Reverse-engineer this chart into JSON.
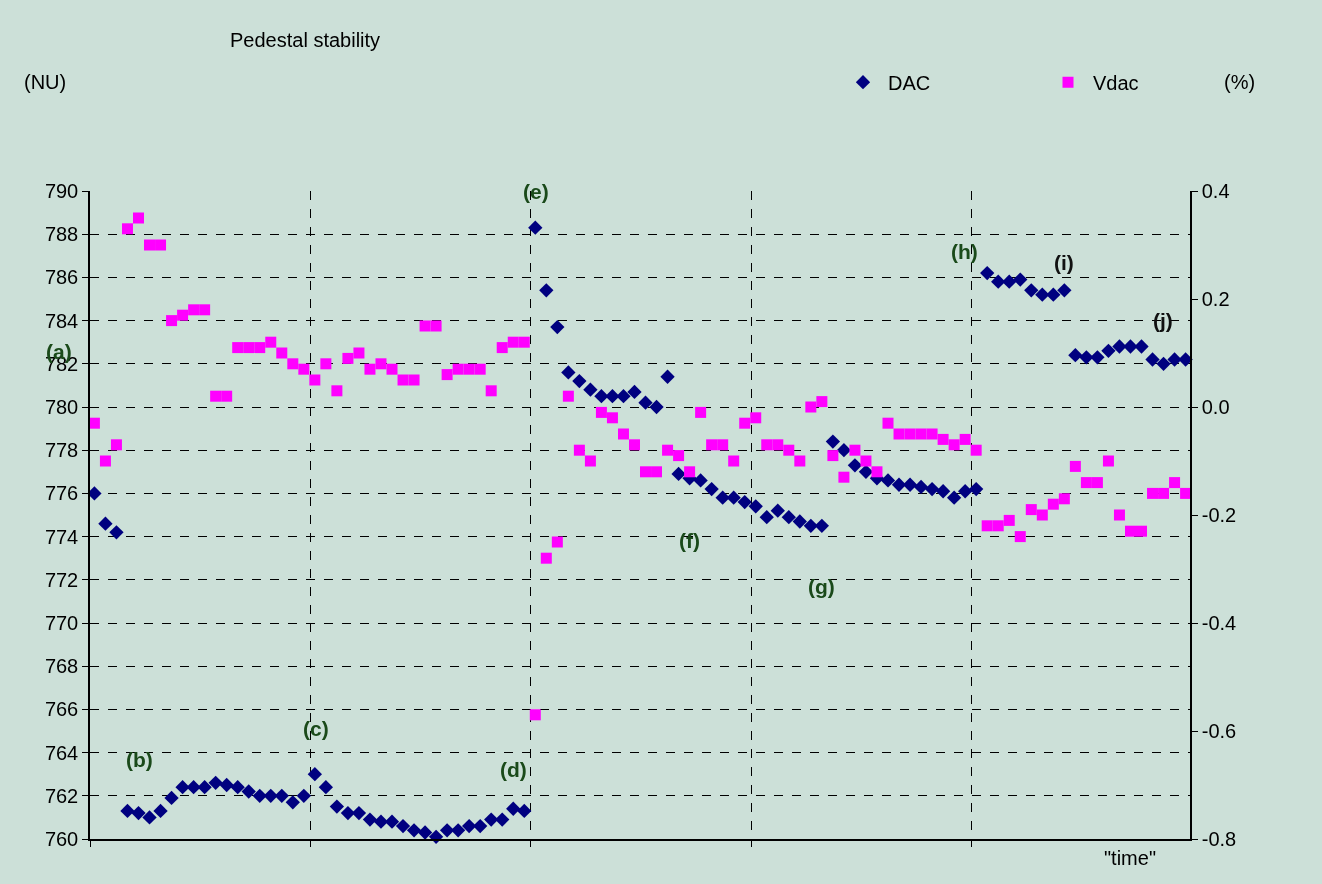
{
  "chart_data": {
    "type": "scatter",
    "title": "Pedestal stability",
    "xlabel": "\"time\"",
    "ylabel": "(NU)",
    "y2label": "(%)",
    "categories": [
      null,
      null,
      null,
      null,
      null,
      null,
      null,
      null,
      null,
      null,
      null,
      null,
      null,
      null,
      null,
      null,
      null,
      null,
      null,
      null,
      null,
      null,
      null,
      null,
      null,
      null,
      null,
      null,
      null,
      null,
      null,
      null,
      null,
      null,
      null,
      null,
      null,
      null,
      null,
      null,
      null,
      null,
      null,
      null,
      null,
      null,
      null,
      null,
      null,
      null,
      null,
      null,
      null,
      null,
      null,
      null,
      null,
      null,
      null,
      null,
      null,
      null,
      null,
      null,
      null,
      null,
      null,
      null,
      null,
      null,
      null,
      null,
      null,
      null,
      null,
      null,
      null,
      null,
      null,
      null,
      null,
      null,
      null,
      null,
      null,
      null,
      null,
      null,
      null,
      null,
      null,
      null,
      null,
      null,
      null,
      null,
      null,
      null,
      null,
      null
    ],
    "series": [
      {
        "name": "DAC",
        "color": "#000080",
        "marker": "diamond",
        "values": [
          776.0,
          774.6,
          774.2,
          761.3,
          761.2,
          761.0,
          761.3,
          761.9,
          762.4,
          762.4,
          762.4,
          762.6,
          762.5,
          762.4,
          762.2,
          762.0,
          762.0,
          762.0,
          761.7,
          762.0,
          763.0,
          762.4,
          761.5,
          761.2,
          761.2,
          760.9,
          760.8,
          760.8,
          760.6,
          760.4,
          760.3,
          760.1,
          760.4,
          760.4,
          760.6,
          760.6,
          760.9,
          760.9,
          761.4,
          761.3,
          788.3,
          785.4,
          783.7,
          781.6,
          781.2,
          780.8,
          780.5,
          780.5,
          780.5,
          780.7,
          780.2,
          780.0,
          781.4,
          776.9,
          776.7,
          776.6,
          776.2,
          775.8,
          775.8,
          775.6,
          775.4,
          774.9,
          775.2,
          774.9,
          774.7,
          774.5,
          774.5,
          778.4,
          778.0,
          777.3,
          777.0,
          776.7,
          776.6,
          776.4,
          776.4,
          776.3,
          776.2,
          776.1,
          775.8,
          776.1,
          776.2,
          786.2,
          785.8,
          785.8,
          785.9,
          785.4,
          785.2,
          785.2,
          785.4,
          782.4,
          782.3,
          782.3,
          782.6,
          782.8,
          782.8,
          782.8,
          782.2,
          782.0,
          782.2,
          782.2
        ]
      },
      {
        "name": "Vdac",
        "color": "#ff00ff",
        "marker": "square",
        "axis": "y2",
        "values": [
          -0.03,
          -0.1,
          -0.07,
          0.33,
          0.35,
          0.3,
          0.3,
          0.16,
          0.17,
          0.18,
          0.18,
          0.02,
          0.02,
          0.11,
          0.11,
          0.11,
          0.12,
          0.1,
          0.08,
          0.07,
          0.05,
          0.08,
          0.03,
          0.09,
          0.1,
          0.07,
          0.08,
          0.07,
          0.05,
          0.05,
          0.15,
          0.15,
          0.06,
          0.07,
          0.07,
          0.07,
          0.03,
          0.11,
          0.12,
          0.12,
          -0.57,
          -0.28,
          -0.25,
          0.02,
          -0.08,
          -0.1,
          -0.01,
          -0.02,
          -0.05,
          -0.07,
          -0.12,
          -0.12,
          -0.08,
          -0.09,
          -0.12,
          -0.01,
          -0.07,
          -0.07,
          -0.1,
          -0.03,
          -0.02,
          -0.07,
          -0.07,
          -0.08,
          -0.1,
          0.0,
          0.01,
          -0.09,
          -0.13,
          -0.08,
          -0.1,
          -0.12,
          -0.03,
          -0.05,
          -0.05,
          -0.05,
          -0.05,
          -0.06,
          -0.07,
          -0.06,
          -0.08,
          -0.22,
          -0.22,
          -0.21,
          -0.24,
          -0.19,
          -0.2,
          -0.18,
          -0.17,
          -0.11,
          -0.14,
          -0.14,
          -0.1,
          -0.2,
          -0.23,
          -0.23,
          -0.16,
          -0.16,
          -0.14,
          -0.16
        ]
      }
    ],
    "ylim": [
      760,
      790
    ],
    "yticks": [
      760,
      762,
      764,
      766,
      768,
      770,
      772,
      774,
      776,
      778,
      780,
      782,
      784,
      786,
      788,
      790
    ],
    "y2lim": [
      -0.8,
      0.4
    ],
    "y2ticks": [
      -0.8,
      -0.6,
      -0.4,
      -0.2,
      {
        "value": 0,
        "label": "0.0"
      },
      0.2,
      0.4
    ],
    "tick_labels": "y",
    "grid": true,
    "legend": "top right",
    "annotations": [
      "(a)",
      "(b)",
      "(c)",
      "(d)",
      "(e)",
      "(f)",
      "(g)",
      "(h)",
      "(i)",
      "(j)"
    ]
  }
}
